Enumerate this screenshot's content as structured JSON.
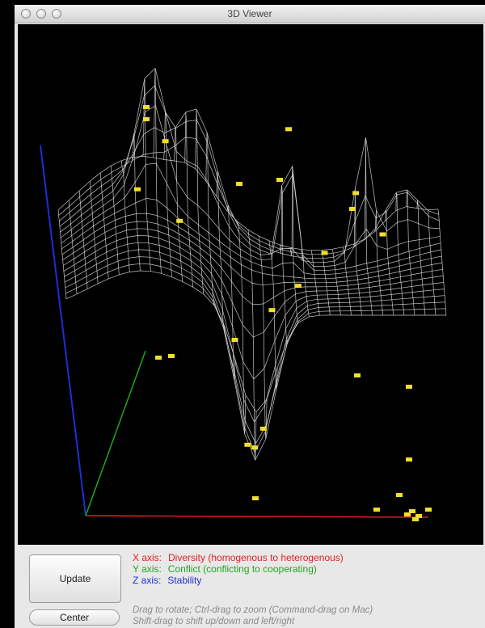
{
  "window": {
    "title": "3D Viewer"
  },
  "controls": {
    "update_label": "Update",
    "center_label": "Center"
  },
  "axes": {
    "x": {
      "name": "X axis:",
      "desc": "Diversity (homogenous to heterogenous)",
      "color": "#e02020"
    },
    "y": {
      "name": "Y axis:",
      "desc": "Conflict (conflicting to cooperating)",
      "color": "#1da81d"
    },
    "z": {
      "name": "Z axis:",
      "desc": "Stability",
      "color": "#1c2fd6"
    }
  },
  "hints": {
    "line1": "Drag to rotate; Ctrl-drag to zoom (Command-drag on Mac)",
    "line2": "Shift-drag to shift up/down and left/right"
  },
  "colors": {
    "viewport_bg": "#000000",
    "mesh": "#e6e6e6",
    "marker": "#f2df2a"
  }
}
